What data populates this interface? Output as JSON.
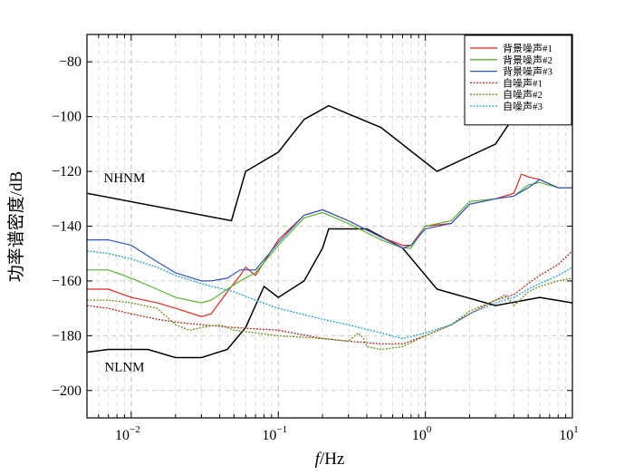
{
  "chart_data": {
    "type": "line",
    "xlabel_italic": "f",
    "xlabel_unit": "/Hz",
    "ylabel": "功率谱密度/dB",
    "xscale": "log",
    "xlim": [
      0.005,
      10
    ],
    "ylim": [
      -210,
      -70
    ],
    "x_ticks": [
      {
        "value": 0.01,
        "label": "10",
        "exp": "−2"
      },
      {
        "value": 0.1,
        "label": "10",
        "exp": "−1"
      },
      {
        "value": 1,
        "label": "10",
        "exp": "0"
      },
      {
        "value": 10,
        "label": "10",
        "exp": "1"
      }
    ],
    "y_ticks": [
      {
        "value": -80,
        "label": "−80"
      },
      {
        "value": -100,
        "label": "−100"
      },
      {
        "value": -120,
        "label": "−120"
      },
      {
        "value": -140,
        "label": "−140"
      },
      {
        "value": -160,
        "label": "−160"
      },
      {
        "value": -180,
        "label": "−180"
      },
      {
        "value": -200,
        "label": "−200"
      }
    ],
    "grid": true,
    "legend_position": "top-right",
    "reference_curves": [
      {
        "name": "NHNM",
        "color": "#000000",
        "x": [
          0.005,
          0.048,
          0.06,
          0.1,
          0.15,
          0.22,
          0.5,
          1.2,
          3,
          4
        ],
        "y": [
          -128,
          -138,
          -120,
          -113,
          -101,
          -96,
          -104,
          -120,
          -110,
          -100
        ]
      },
      {
        "name": "NLNM",
        "color": "#000000",
        "x": [
          0.005,
          0.007,
          0.013,
          0.02,
          0.03,
          0.045,
          0.06,
          0.08,
          0.1,
          0.15,
          0.2,
          0.22,
          0.4,
          0.7,
          1.2,
          3,
          6,
          10
        ],
        "y": [
          -186,
          -185,
          -185,
          -188,
          -188,
          -185,
          -177,
          -162,
          -166,
          -160,
          -148,
          -141,
          -141,
          -148,
          -163,
          -169,
          -166,
          -168
        ]
      }
    ],
    "reference_labels": [
      {
        "text": "NHNM",
        "x": 0.009,
        "y": -124
      },
      {
        "text": "NLNM",
        "x": 0.009,
        "y": -193
      }
    ],
    "series": [
      {
        "name": "背景噪声#1",
        "color": "#e8231f",
        "dash": "solid",
        "x": [
          0.005,
          0.007,
          0.01,
          0.015,
          0.02,
          0.03,
          0.035,
          0.045,
          0.055,
          0.06,
          0.07,
          0.1,
          0.15,
          0.2,
          0.3,
          0.5,
          0.7,
          0.8,
          1,
          1.5,
          2,
          3,
          4,
          4.5,
          5,
          6,
          8,
          10
        ],
        "y": [
          -163,
          -163,
          -166,
          -168,
          -170,
          -173,
          -172,
          -164,
          -158,
          -155,
          -158,
          -145,
          -136,
          -134,
          -138,
          -144,
          -147,
          -147,
          -140,
          -139,
          -132,
          -130,
          -128,
          -121,
          -122,
          -123,
          -126,
          -126
        ]
      },
      {
        "name": "背景噪声#2",
        "color": "#57b52e",
        "dash": "solid",
        "x": [
          0.005,
          0.007,
          0.01,
          0.015,
          0.02,
          0.03,
          0.035,
          0.045,
          0.055,
          0.07,
          0.1,
          0.15,
          0.2,
          0.3,
          0.5,
          0.7,
          0.8,
          1,
          1.5,
          2,
          3,
          4,
          5,
          6,
          8,
          10
        ],
        "y": [
          -156,
          -156,
          -159,
          -163,
          -166,
          -168,
          -167,
          -163,
          -160,
          -157,
          -147,
          -137,
          -135,
          -139,
          -145,
          -148,
          -148,
          -140,
          -138,
          -131,
          -130,
          -129,
          -125,
          -124,
          -126,
          -126
        ]
      },
      {
        "name": "背景噪声#3",
        "color": "#2f57c4",
        "dash": "solid",
        "x": [
          0.005,
          0.007,
          0.01,
          0.015,
          0.02,
          0.03,
          0.035,
          0.045,
          0.055,
          0.07,
          0.1,
          0.15,
          0.2,
          0.3,
          0.5,
          0.7,
          0.8,
          1,
          1.5,
          2,
          3,
          4,
          5,
          6,
          8,
          10
        ],
        "y": [
          -145,
          -145,
          -147,
          -153,
          -157,
          -160,
          -160,
          -159,
          -156,
          -156,
          -146,
          -136,
          -134,
          -138,
          -144,
          -148,
          -147,
          -141,
          -139,
          -132,
          -130,
          -129,
          -126,
          -123,
          -126,
          -126
        ]
      },
      {
        "name": "自噪声#1",
        "color": "#b22a24",
        "dash": "dotted",
        "x": [
          0.005,
          0.007,
          0.01,
          0.015,
          0.02,
          0.03,
          0.05,
          0.1,
          0.2,
          0.3,
          0.5,
          0.7,
          1,
          1.5,
          2,
          3,
          4,
          5,
          6,
          8,
          10
        ],
        "y": [
          -169,
          -170,
          -172,
          -174,
          -175,
          -176,
          -177,
          -178,
          -181,
          -182,
          -183,
          -183,
          -180,
          -176,
          -172,
          -167,
          -165,
          -161,
          -158,
          -154,
          -149
        ]
      },
      {
        "name": "自噪声#2",
        "color": "#6b8e23",
        "dash": "dotted",
        "x": [
          0.005,
          0.007,
          0.01,
          0.015,
          0.02,
          0.025,
          0.03,
          0.04,
          0.05,
          0.1,
          0.2,
          0.3,
          0.35,
          0.38,
          0.4,
          0.5,
          0.7,
          1,
          1.5,
          2,
          3,
          3.5,
          4,
          5,
          6,
          8,
          10
        ],
        "y": [
          -167,
          -167,
          -168,
          -170,
          -176,
          -178,
          -177,
          -176,
          -178,
          -180,
          -181,
          -182,
          -179,
          -181,
          -184,
          -185,
          -184,
          -180,
          -176,
          -171,
          -167,
          -165,
          -169,
          -164,
          -162,
          -160,
          -159
        ]
      },
      {
        "name": "自噪声#3",
        "color": "#1e9fe0",
        "dash": "dotted",
        "x": [
          0.005,
          0.007,
          0.01,
          0.015,
          0.02,
          0.03,
          0.05,
          0.07,
          0.1,
          0.2,
          0.3,
          0.5,
          0.7,
          1,
          1.5,
          2,
          3,
          4,
          5,
          6,
          8,
          10
        ],
        "y": [
          -149,
          -150,
          -152,
          -155,
          -158,
          -161,
          -164,
          -167,
          -170,
          -174,
          -176,
          -179,
          -181,
          -179,
          -176,
          -172,
          -168,
          -166,
          -163,
          -161,
          -158,
          -155
        ]
      }
    ]
  }
}
